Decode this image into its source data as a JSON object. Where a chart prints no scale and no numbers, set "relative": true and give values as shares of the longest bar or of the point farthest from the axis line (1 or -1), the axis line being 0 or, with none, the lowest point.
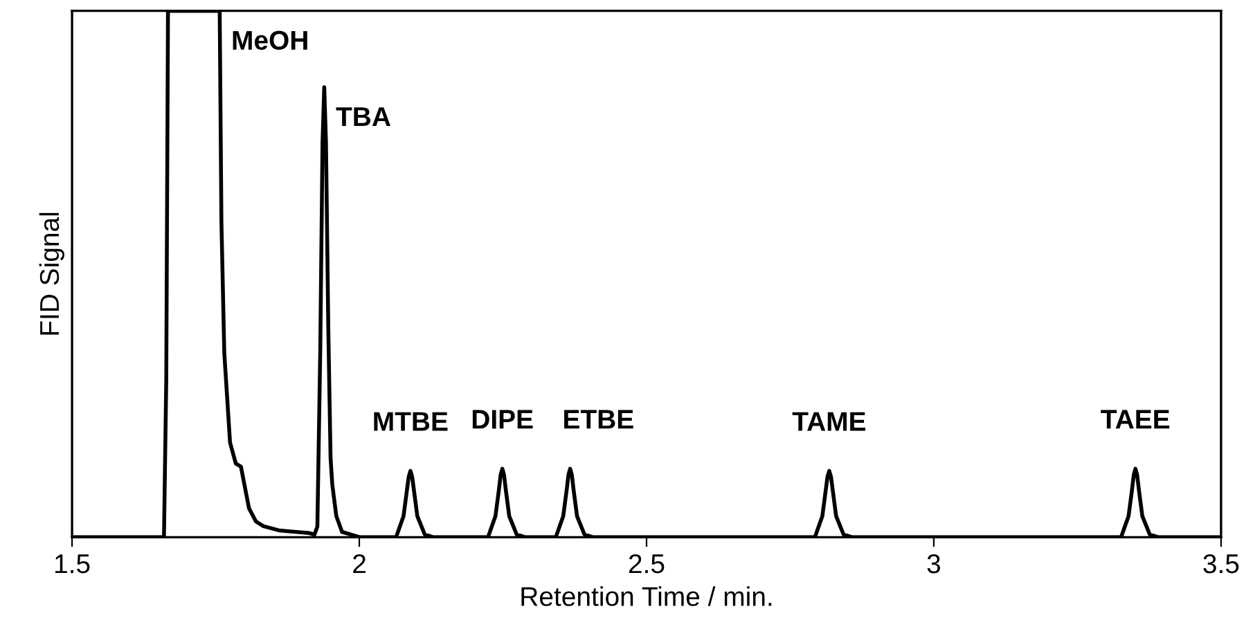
{
  "chart_data": {
    "type": "line",
    "relative": true,
    "xlabel": "Retention Time / min.",
    "ylabel": "FID Signal",
    "xlim": [
      1.5,
      3.5
    ],
    "xticks": [
      1.5,
      2,
      2.5,
      3,
      3.5
    ],
    "grid": false,
    "marker": "none",
    "line_style": "solid",
    "series": [
      {
        "color": "#000000",
        "x": [
          1.5,
          1.65,
          1.66,
          1.664,
          1.667,
          1.757,
          1.76,
          1.765,
          1.775,
          1.785,
          1.794,
          1.8,
          1.808,
          1.82,
          1.833,
          1.86,
          1.88,
          1.912,
          1.922,
          1.927,
          1.932,
          1.936,
          1.939,
          1.942,
          1.946,
          1.95,
          1.953,
          1.96,
          1.97,
          2.001,
          2.064,
          2.077,
          2.08,
          2.083,
          2.086,
          2.089,
          2.092,
          2.095,
          2.098,
          2.101,
          2.114,
          2.129,
          2.224,
          2.237,
          2.24,
          2.243,
          2.246,
          2.249,
          2.252,
          2.255,
          2.258,
          2.261,
          2.274,
          2.289,
          2.342,
          2.355,
          2.358,
          2.361,
          2.364,
          2.367,
          2.37,
          2.373,
          2.376,
          2.379,
          2.392,
          2.407,
          2.793,
          2.806,
          2.809,
          2.812,
          2.815,
          2.818,
          2.821,
          2.824,
          2.827,
          2.83,
          2.843,
          2.858,
          3.326,
          3.339,
          3.342,
          3.345,
          3.348,
          3.351,
          3.354,
          3.357,
          3.36,
          3.363,
          3.376,
          3.391,
          3.5
        ],
        "values": [
          0,
          0,
          0,
          0.3,
          1,
          1,
          0.6,
          0.35,
          0.18,
          0.14,
          0.134,
          0.1,
          0.055,
          0.03,
          0.021,
          0.013,
          0.011,
          0.008,
          0.005,
          0.02,
          0.35,
          0.75,
          0.855,
          0.75,
          0.4,
          0.15,
          0.1,
          0.04,
          0.01,
          0,
          0,
          0.04,
          0.065,
          0.09,
          0.115,
          0.126,
          0.115,
          0.09,
          0.065,
          0.04,
          0.005,
          0,
          0,
          0.04,
          0.065,
          0.09,
          0.118,
          0.13,
          0.118,
          0.09,
          0.065,
          0.04,
          0.005,
          0,
          0,
          0.04,
          0.065,
          0.09,
          0.118,
          0.13,
          0.118,
          0.09,
          0.065,
          0.04,
          0.005,
          0,
          0,
          0.04,
          0.065,
          0.09,
          0.115,
          0.126,
          0.115,
          0.09,
          0.065,
          0.04,
          0.005,
          0,
          0,
          0.04,
          0.065,
          0.09,
          0.118,
          0.13,
          0.118,
          0.09,
          0.065,
          0.04,
          0.005,
          0,
          0
        ]
      }
    ],
    "annotations": [
      {
        "text": "MeOH",
        "x": 1.757,
        "y": 1
      },
      {
        "text": "TBA",
        "x": 1.939,
        "y": 0.855
      },
      {
        "text": "MTBE",
        "x": 2.089,
        "y": 0.126
      },
      {
        "text": "DIPE",
        "x": 2.249,
        "y": 0.13
      },
      {
        "text": "ETBE",
        "x": 2.367,
        "y": 0.13
      },
      {
        "text": "TAME",
        "x": 2.818,
        "y": 0.126
      },
      {
        "text": "TAEE",
        "x": 3.351,
        "y": 0.13
      }
    ]
  }
}
